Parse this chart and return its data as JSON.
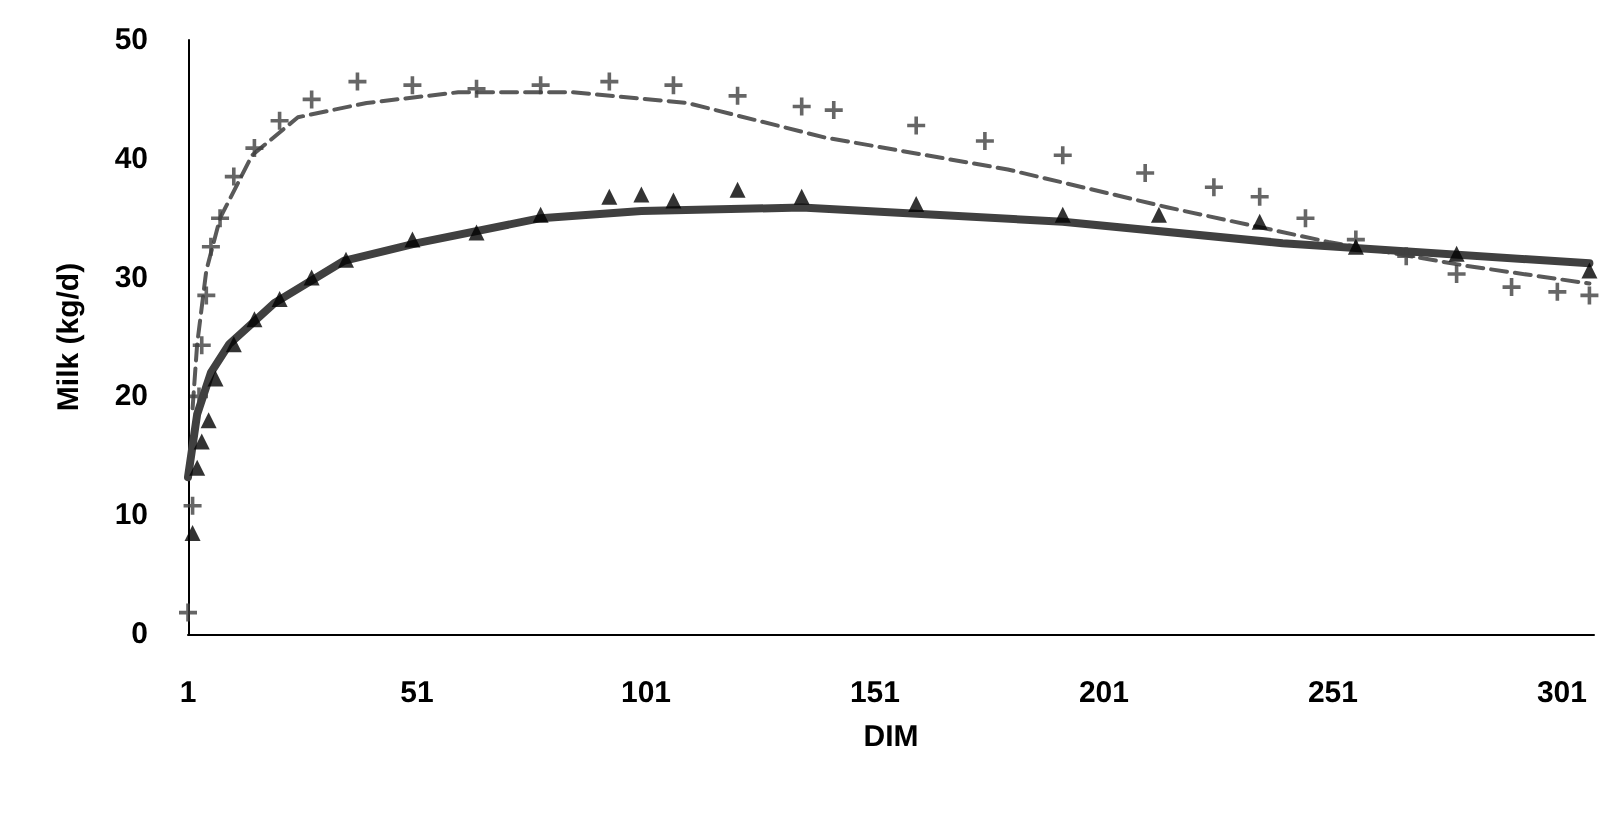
{
  "chart_data": {
    "type": "scatter",
    "xlabel": "DIM",
    "ylabel": "Milk (kg/d)",
    "xlim": [
      1,
      308
    ],
    "xticks": [
      1,
      51,
      101,
      151,
      201,
      251,
      301
    ],
    "ylim": [
      0,
      50
    ],
    "yticks": [
      0,
      10,
      20,
      30,
      40,
      50
    ],
    "grid": false,
    "series": [
      {
        "marker": "cross",
        "color": "#404040",
        "x": [
          1,
          2,
          3.4,
          4,
          5,
          6,
          8,
          11,
          15.5,
          21,
          28,
          38,
          50,
          64,
          78,
          93,
          107,
          121,
          135,
          142,
          160,
          175,
          192,
          210,
          225,
          235,
          245,
          256,
          267,
          278,
          290,
          300,
          307
        ],
        "values": [
          1.8,
          10.8,
          20,
          24.3,
          28.5,
          32.6,
          35,
          38.5,
          40.9,
          43.2,
          45,
          46.5,
          46.2,
          45.9,
          46.2,
          46.5,
          46.2,
          45.3,
          44.4,
          44.1,
          42.8,
          41.5,
          40.3,
          38.8,
          37.6,
          36.8,
          35,
          33.2,
          31.8,
          30.3,
          29.2,
          28.8,
          28.5
        ]
      },
      {
        "marker": "triangle",
        "color": "#000000",
        "x": [
          2,
          3,
          4,
          5.5,
          7,
          11,
          15.5,
          21,
          28,
          35.5,
          50,
          64,
          78,
          93,
          100,
          107,
          121,
          135,
          160,
          192,
          213,
          235,
          256,
          278,
          307
        ],
        "values": [
          8.5,
          14,
          16.2,
          18,
          21.5,
          24.4,
          26.5,
          28.2,
          30,
          31.5,
          33.2,
          33.8,
          35.3,
          36.8,
          37,
          36.5,
          37.4,
          36.8,
          36.2,
          35.3,
          35.3,
          34.7,
          32.6,
          32,
          30.6
        ]
      },
      {
        "type": "line",
        "line_style": "dashed",
        "color": "#595959",
        "x": [
          2,
          3,
          5,
          8,
          15,
          25,
          40,
          60,
          85,
          110,
          140,
          180,
          215,
          250,
          280,
          307
        ],
        "values": [
          19,
          24.4,
          30.6,
          35,
          40.3,
          43.5,
          44.7,
          45.6,
          45.6,
          44.7,
          41.8,
          39.1,
          35.9,
          33,
          31,
          29.5
        ]
      },
      {
        "type": "line",
        "line_style": "solid",
        "color": "#404040",
        "x": [
          1,
          3,
          6,
          10,
          20,
          35,
          51,
          78,
          100,
          135,
          192,
          240,
          307
        ],
        "values": [
          13.2,
          18.5,
          22,
          24.4,
          27.9,
          31.4,
          32.9,
          35,
          35.6,
          35.9,
          34.7,
          32.9,
          31.2
        ]
      }
    ]
  }
}
